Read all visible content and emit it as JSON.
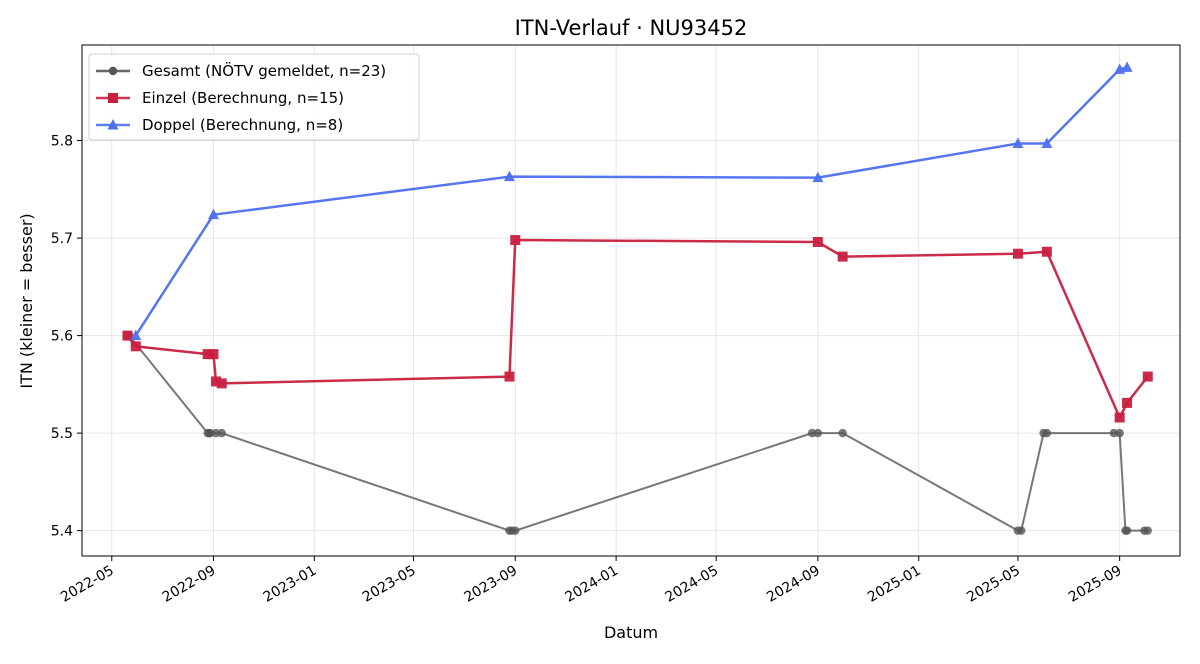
{
  "chart_data": {
    "type": "line",
    "title": "ITN-Verlauf · NU93452",
    "xlabel": "Datum",
    "ylabel": "ITN  (kleiner = besser)",
    "x_axis_type": "date",
    "xlim": [
      "2022-03-26",
      "2025-11-13"
    ],
    "ylim": [
      5.374,
      5.898
    ],
    "x_ticks": [
      "2022-05-01",
      "2022-09-01",
      "2023-01-01",
      "2023-05-01",
      "2023-09-01",
      "2024-01-01",
      "2024-05-01",
      "2024-09-01",
      "2025-01-01",
      "2025-05-01",
      "2025-09-01"
    ],
    "x_tick_labels": [
      "2022-05",
      "2022-09",
      "2023-01",
      "2023-05",
      "2023-09",
      "2024-01",
      "2024-05",
      "2024-09",
      "2025-01",
      "2025-05",
      "2025-09"
    ],
    "y_ticks": [
      5.4,
      5.5,
      5.6,
      5.7,
      5.8
    ],
    "y_tick_labels": [
      "5.4",
      "5.5",
      "5.6",
      "5.7",
      "5.8"
    ],
    "grid": true,
    "legend_position": "upper-left",
    "series": [
      {
        "name": "Gesamt (NÖTV gemeldet, n=23)",
        "color": "#555555",
        "marker": "circle",
        "x": [
          "2022-05-20",
          "2022-05-22",
          "2022-08-25",
          "2022-08-27",
          "2022-08-28",
          "2022-09-04",
          "2022-09-11",
          "2023-08-25",
          "2023-08-28",
          "2023-09-01",
          "2024-08-25",
          "2024-09-01",
          "2024-10-01",
          "2025-05-01",
          "2025-05-05",
          "2025-06-01",
          "2025-06-05",
          "2025-08-25",
          "2025-09-01",
          "2025-09-08",
          "2025-09-10",
          "2025-10-01",
          "2025-10-05"
        ],
        "y": [
          5.6,
          5.6,
          5.5,
          5.5,
          5.5,
          5.5,
          5.5,
          5.4,
          5.4,
          5.4,
          5.5,
          5.5,
          5.5,
          5.4,
          5.4,
          5.5,
          5.5,
          5.5,
          5.5,
          5.4,
          5.4,
          5.4,
          5.4
        ]
      },
      {
        "name": "Einzel (Berechnung, n=15)",
        "color": "#c8203f",
        "marker": "square",
        "x": [
          "2022-05-20",
          "2022-05-30",
          "2022-08-25",
          "2022-09-01",
          "2022-09-04",
          "2022-09-11",
          "2023-08-25",
          "2023-09-01",
          "2024-09-01",
          "2024-10-01",
          "2025-05-01",
          "2025-06-05",
          "2025-09-01",
          "2025-09-10",
          "2025-10-05"
        ],
        "y": [
          5.6,
          5.589,
          5.581,
          5.581,
          5.553,
          5.551,
          5.558,
          5.698,
          5.696,
          5.681,
          5.684,
          5.686,
          5.516,
          5.531,
          5.558
        ]
      },
      {
        "name": "Doppel (Berechnung, n=8)",
        "color": "#4d6ff0",
        "marker": "triangle",
        "x": [
          "2022-05-30",
          "2022-09-01",
          "2023-08-25",
          "2024-09-01",
          "2025-05-01",
          "2025-06-05",
          "2025-09-01",
          "2025-09-10"
        ],
        "y": [
          5.6,
          5.724,
          5.763,
          5.762,
          5.797,
          5.797,
          5.873,
          5.875
        ]
      }
    ]
  }
}
